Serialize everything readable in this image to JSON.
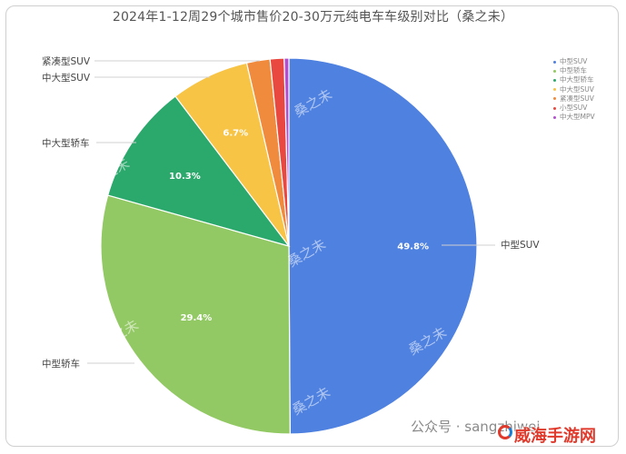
{
  "chart_data": {
    "type": "pie",
    "title": "2024年1-12周29个城市售价20-30万元纯电车车级别对比（桑之未）",
    "slices": [
      {
        "name": "中型SUV",
        "value": 49.8,
        "color": "#4f81e0",
        "pct_label": "49.8%",
        "outer_label": "中型SUV"
      },
      {
        "name": "中型轿车",
        "value": 29.4,
        "color": "#93c964",
        "pct_label": "29.4%",
        "outer_label": "中型轿车"
      },
      {
        "name": "中大型轿车",
        "value": 10.3,
        "color": "#2ba86b",
        "pct_label": "10.3%",
        "outer_label": "中大型轿车"
      },
      {
        "name": "中大型SUV",
        "value": 6.7,
        "color": "#f7c446",
        "pct_label": "6.7%",
        "outer_label": "中大型SUV"
      },
      {
        "name": "紧凑型SUV",
        "value": 2.0,
        "color": "#f08a3c",
        "pct_label": "",
        "outer_label": "紧凑型SUV"
      },
      {
        "name": "小型SUV",
        "value": 1.2,
        "color": "#e8483f",
        "pct_label": "",
        "outer_label": ""
      },
      {
        "name": "中大型MPV",
        "value": 0.4,
        "color": "#b24fd0",
        "pct_label": "",
        "outer_label": ""
      }
    ],
    "legend": [
      "中型SUV",
      "中型轿车",
      "中大型轿车",
      "中大型SUV",
      "紧凑型SUV",
      "小型SUV",
      "中大型MPV"
    ],
    "legend_position": "top-right"
  },
  "watermarks": {
    "text": "桑之未",
    "footer": "公众号 · sangzhiwei",
    "site": "威海手游网"
  }
}
